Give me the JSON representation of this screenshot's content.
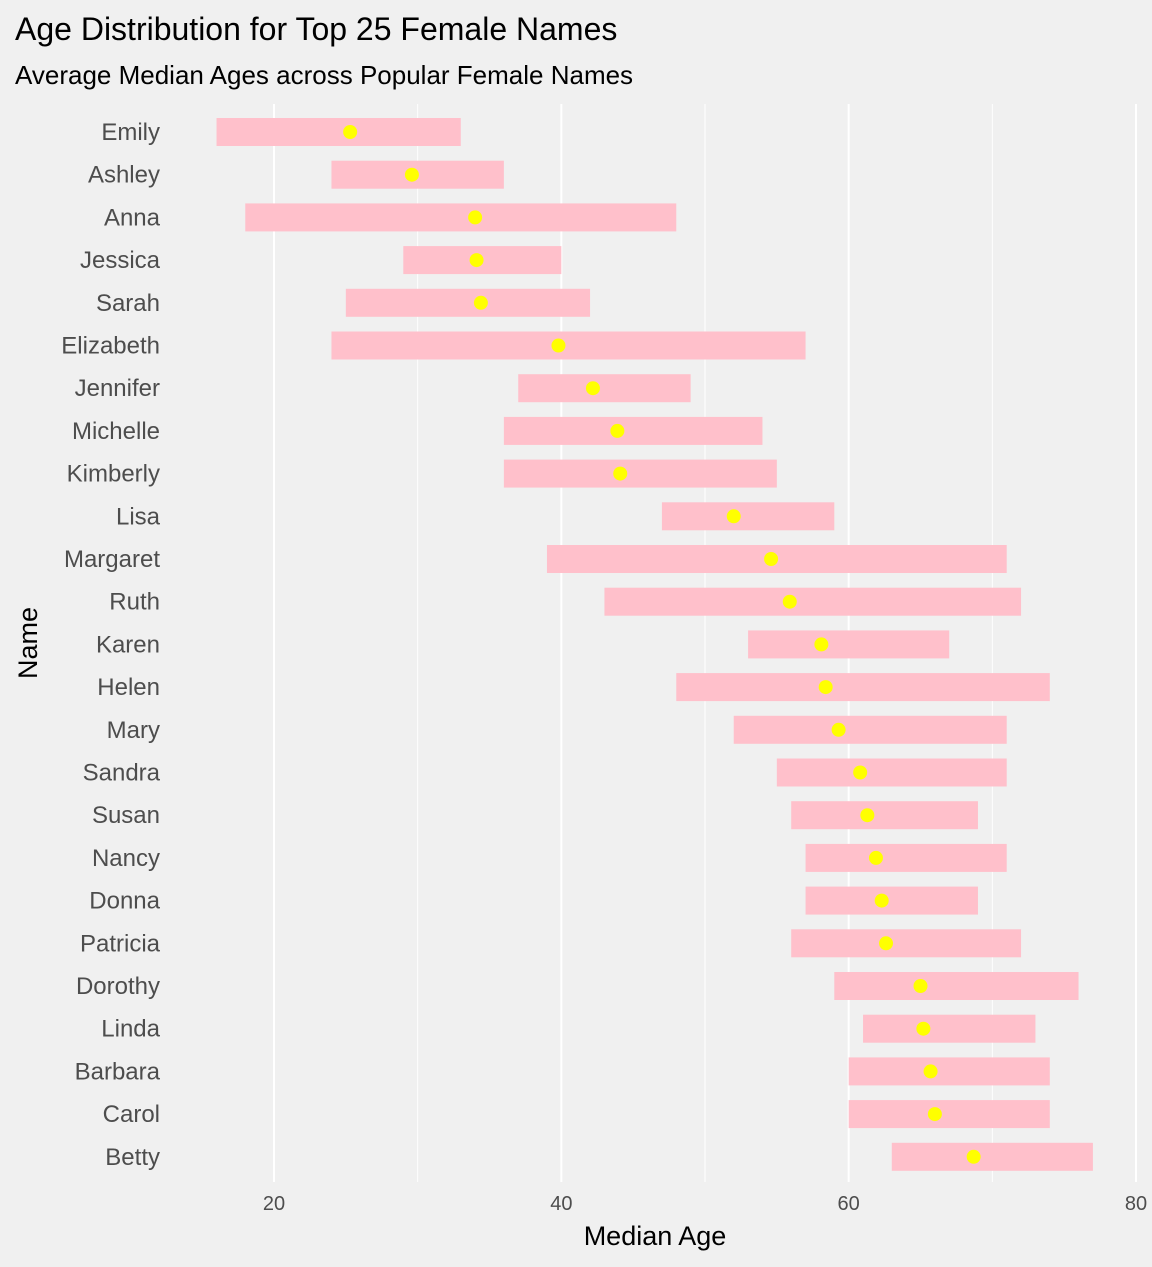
{
  "chart_data": {
    "type": "range-dot",
    "title": "Age Distribution for Top 25 Female Names",
    "subtitle": "Average Median Ages across Popular Female Names",
    "xlabel": "Median Age",
    "ylabel": "Name",
    "xlim": [
      10,
      80
    ],
    "xticks": [
      20,
      40,
      60,
      80
    ],
    "grid": true,
    "legend": "none",
    "colors": {
      "background": "#f0f0f0",
      "grid": "#ffffff",
      "range_bar": "#ffc0cb",
      "median_point": "#ffff00"
    },
    "series": [
      {
        "name": "Emily",
        "low": 16,
        "high": 33,
        "median": 25.3
      },
      {
        "name": "Ashley",
        "low": 24,
        "high": 36,
        "median": 29.6
      },
      {
        "name": "Anna",
        "low": 18,
        "high": 48,
        "median": 34.0
      },
      {
        "name": "Jessica",
        "low": 29,
        "high": 40,
        "median": 34.1
      },
      {
        "name": "Sarah",
        "low": 25,
        "high": 42,
        "median": 34.4
      },
      {
        "name": "Elizabeth",
        "low": 24,
        "high": 57,
        "median": 39.8
      },
      {
        "name": "Jennifer",
        "low": 37,
        "high": 49,
        "median": 42.2
      },
      {
        "name": "Michelle",
        "low": 36,
        "high": 54,
        "median": 43.9
      },
      {
        "name": "Kimberly",
        "low": 36,
        "high": 55,
        "median": 44.1
      },
      {
        "name": "Lisa",
        "low": 47,
        "high": 59,
        "median": 52.0
      },
      {
        "name": "Margaret",
        "low": 39,
        "high": 71,
        "median": 54.6
      },
      {
        "name": "Ruth",
        "low": 43,
        "high": 72,
        "median": 55.9
      },
      {
        "name": "Karen",
        "low": 53,
        "high": 67,
        "median": 58.1
      },
      {
        "name": "Helen",
        "low": 48,
        "high": 74,
        "median": 58.4
      },
      {
        "name": "Mary",
        "low": 52,
        "high": 71,
        "median": 59.3
      },
      {
        "name": "Sandra",
        "low": 55,
        "high": 71,
        "median": 60.8
      },
      {
        "name": "Susan",
        "low": 56,
        "high": 69,
        "median": 61.3
      },
      {
        "name": "Nancy",
        "low": 57,
        "high": 71,
        "median": 61.9
      },
      {
        "name": "Donna",
        "low": 57,
        "high": 69,
        "median": 62.3
      },
      {
        "name": "Patricia",
        "low": 56,
        "high": 72,
        "median": 62.6
      },
      {
        "name": "Dorothy",
        "low": 59,
        "high": 76,
        "median": 65.0
      },
      {
        "name": "Linda",
        "low": 61,
        "high": 73,
        "median": 65.2
      },
      {
        "name": "Barbara",
        "low": 60,
        "high": 74,
        "median": 65.7
      },
      {
        "name": "Carol",
        "low": 60,
        "high": 74,
        "median": 66.0
      },
      {
        "name": "Betty",
        "low": 63,
        "high": 77,
        "median": 68.7
      }
    ]
  }
}
